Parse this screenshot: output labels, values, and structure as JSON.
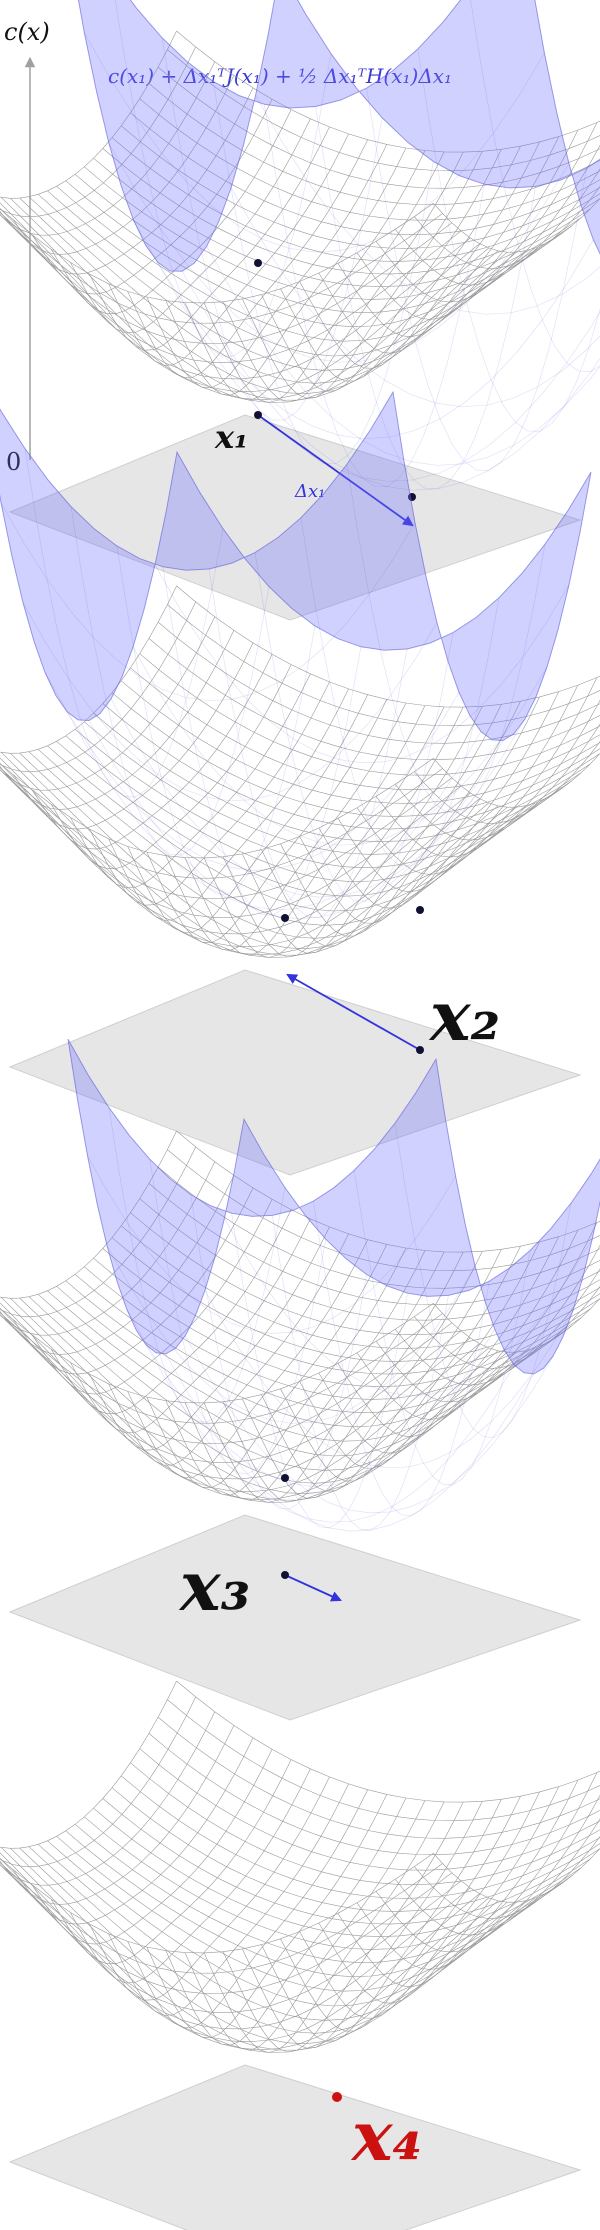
{
  "axis": {
    "ylabel": "c(x)",
    "zero_label": "0"
  },
  "formula": "c(x₁) + Δx₁ᵀJ(x₁) + ½ Δx₁ᵀH(x₁)Δx₁",
  "panels": [
    {
      "id": "panel-1",
      "point_label": "x₁",
      "point_sub": "1",
      "step_label": "Δx₁",
      "label_color": "#111111"
    },
    {
      "id": "panel-2",
      "point_label": "x₂",
      "point_sub": "2",
      "label_color": "#111111"
    },
    {
      "id": "panel-3",
      "point_label": "x₃",
      "point_sub": "3",
      "label_color": "#111111"
    },
    {
      "id": "panel-4",
      "point_label": "x₄",
      "point_sub": "4",
      "label_color": "#cc1111"
    }
  ],
  "colors": {
    "quadratic_fill": "#6f6fff",
    "quadratic_line": "#5a5ad8",
    "mesh_line": "#9a9a9a",
    "plane": "#e6e6e6",
    "step_arrow": "#3333dd",
    "point": "#111133",
    "final_point": "#cc1111"
  }
}
